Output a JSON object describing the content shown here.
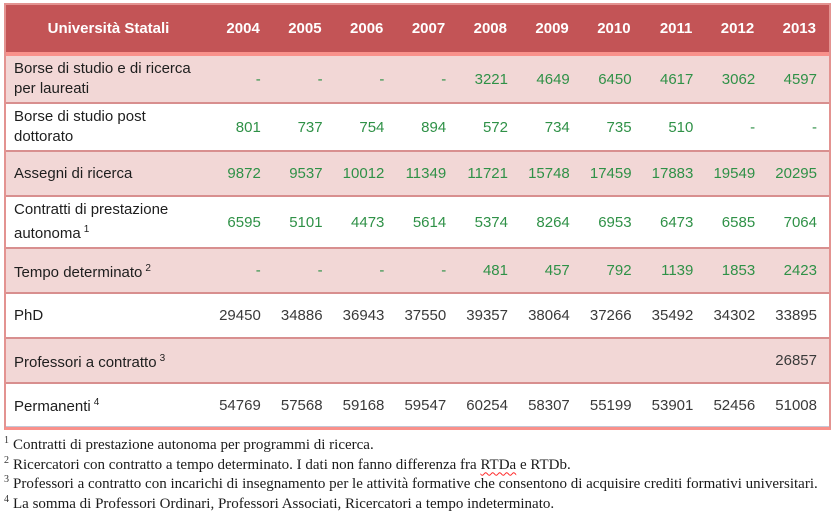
{
  "colors": {
    "header_bg": "#C35456",
    "header_text": "#FFFFFF",
    "pink_row_bg": "#F2D7D6",
    "white_row_bg": "#FFFFFF",
    "outer_border": "#E39391",
    "row_separator": "#D88F8F",
    "header_separator": "#F9918B",
    "green_value_text": "#2F9147",
    "dark_value_text": "#3A3A3A",
    "spellcheck_underline": "#FF2A2A"
  },
  "table": {
    "header": {
      "label": "Università Statali",
      "years": [
        "2004",
        "2005",
        "2006",
        "2007",
        "2008",
        "2009",
        "2010",
        "2011",
        "2012",
        "2013"
      ]
    },
    "rows": [
      {
        "label": "Borse di studio e di ricerca per laureati",
        "sup": "",
        "shade": "pink",
        "tone": "green",
        "values": [
          "-",
          "-",
          "-",
          "-",
          "3221",
          "4649",
          "6450",
          "4617",
          "3062",
          "4597"
        ]
      },
      {
        "label": "Borse di studio post dottorato",
        "sup": "",
        "shade": "white",
        "tone": "green",
        "values": [
          "801",
          "737",
          "754",
          "894",
          "572",
          "734",
          "735",
          "510",
          "-",
          "-"
        ]
      },
      {
        "label": "Assegni di ricerca",
        "sup": "",
        "shade": "pink",
        "tone": "green",
        "values": [
          "9872",
          "9537",
          "10012",
          "11349",
          "11721",
          "15748",
          "17459",
          "17883",
          "19549",
          "20295"
        ]
      },
      {
        "label": "Contratti di prestazione autonoma",
        "sup": "1",
        "shade": "white",
        "tone": "green",
        "values": [
          "6595",
          "5101",
          "4473",
          "5614",
          "5374",
          "8264",
          "6953",
          "6473",
          "6585",
          "7064"
        ]
      },
      {
        "label": "Tempo determinato",
        "sup": "2",
        "shade": "pink",
        "tone": "green",
        "values": [
          "-",
          "-",
          "-",
          "-",
          "481",
          "457",
          "792",
          "1139",
          "1853",
          "2423"
        ]
      },
      {
        "label": "PhD",
        "sup": "",
        "shade": "white",
        "tone": "dark",
        "values": [
          "29450",
          "34886",
          "36943",
          "37550",
          "39357",
          "38064",
          "37266",
          "35492",
          "34302",
          "33895"
        ]
      },
      {
        "label": "Professori a contratto",
        "sup": "3",
        "shade": "pink",
        "tone": "dark",
        "values": [
          "",
          "",
          "",
          "",
          "",
          "",
          "",
          "",
          "",
          "26857"
        ]
      },
      {
        "label": "Permanenti",
        "sup": "4",
        "shade": "white",
        "tone": "dark",
        "values": [
          "54769",
          "57568",
          "59168",
          "59547",
          "60254",
          "58307",
          "55199",
          "53901",
          "52456",
          "51008"
        ]
      }
    ]
  },
  "footnotes": [
    {
      "marker": "1",
      "parts": [
        {
          "text": "Contratti di prestazione autonoma per programmi di ricerca."
        }
      ]
    },
    {
      "marker": "2",
      "parts": [
        {
          "text": "Ricercatori con contratto a tempo determinato. I dati non fanno differenza fra "
        },
        {
          "text": "RTDa",
          "misspelled": true
        },
        {
          "text": " e RTDb."
        }
      ]
    },
    {
      "marker": "3",
      "parts": [
        {
          "text": "Professori a contratto con incarichi di insegnamento per le attività formative che consentono di acquisire crediti formativi universitari."
        }
      ]
    },
    {
      "marker": "4",
      "parts": [
        {
          "text": "La somma di Professori Ordinari, Professori Associati, Ricercatori a tempo indeterminato."
        }
      ]
    }
  ]
}
